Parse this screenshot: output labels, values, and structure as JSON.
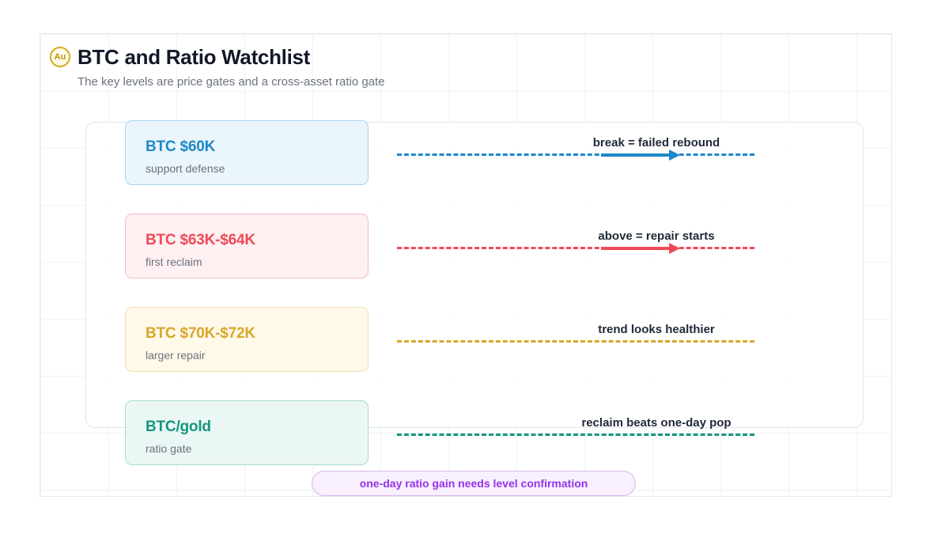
{
  "header": {
    "logo_text": "Au",
    "title": "BTC and Ratio Watchlist",
    "subtitle": "The key levels are price gates and a cross-asset ratio gate"
  },
  "gates": [
    {
      "level": "BTC $60K",
      "description": "support defense",
      "note": "break = failed rebound",
      "color": "#1e88c7",
      "bg": "#eaf5fc",
      "border": "#a9d4ee",
      "arrow": true
    },
    {
      "level": "BTC $63K-$64K",
      "description": "first reclaim",
      "note": "above = repair starts",
      "color": "#ef4a57",
      "bg": "#fff0f2",
      "border": "#f6bcc4",
      "arrow": true
    },
    {
      "level": "BTC $70K-$72K",
      "description": "larger repair",
      "note": "trend looks healthier",
      "color": "#d9a62a",
      "bg": "#fff9ea",
      "border": "#f3dfae",
      "arrow": false
    },
    {
      "level": "BTC/gold",
      "description": "ratio gate",
      "note": "reclaim beats one-day pop",
      "color": "#14967d",
      "bg": "#eaf7f4",
      "border": "#a6dccf",
      "arrow": false
    }
  ],
  "footer": {
    "pill_text": "one-day ratio gain needs level confirmation"
  }
}
